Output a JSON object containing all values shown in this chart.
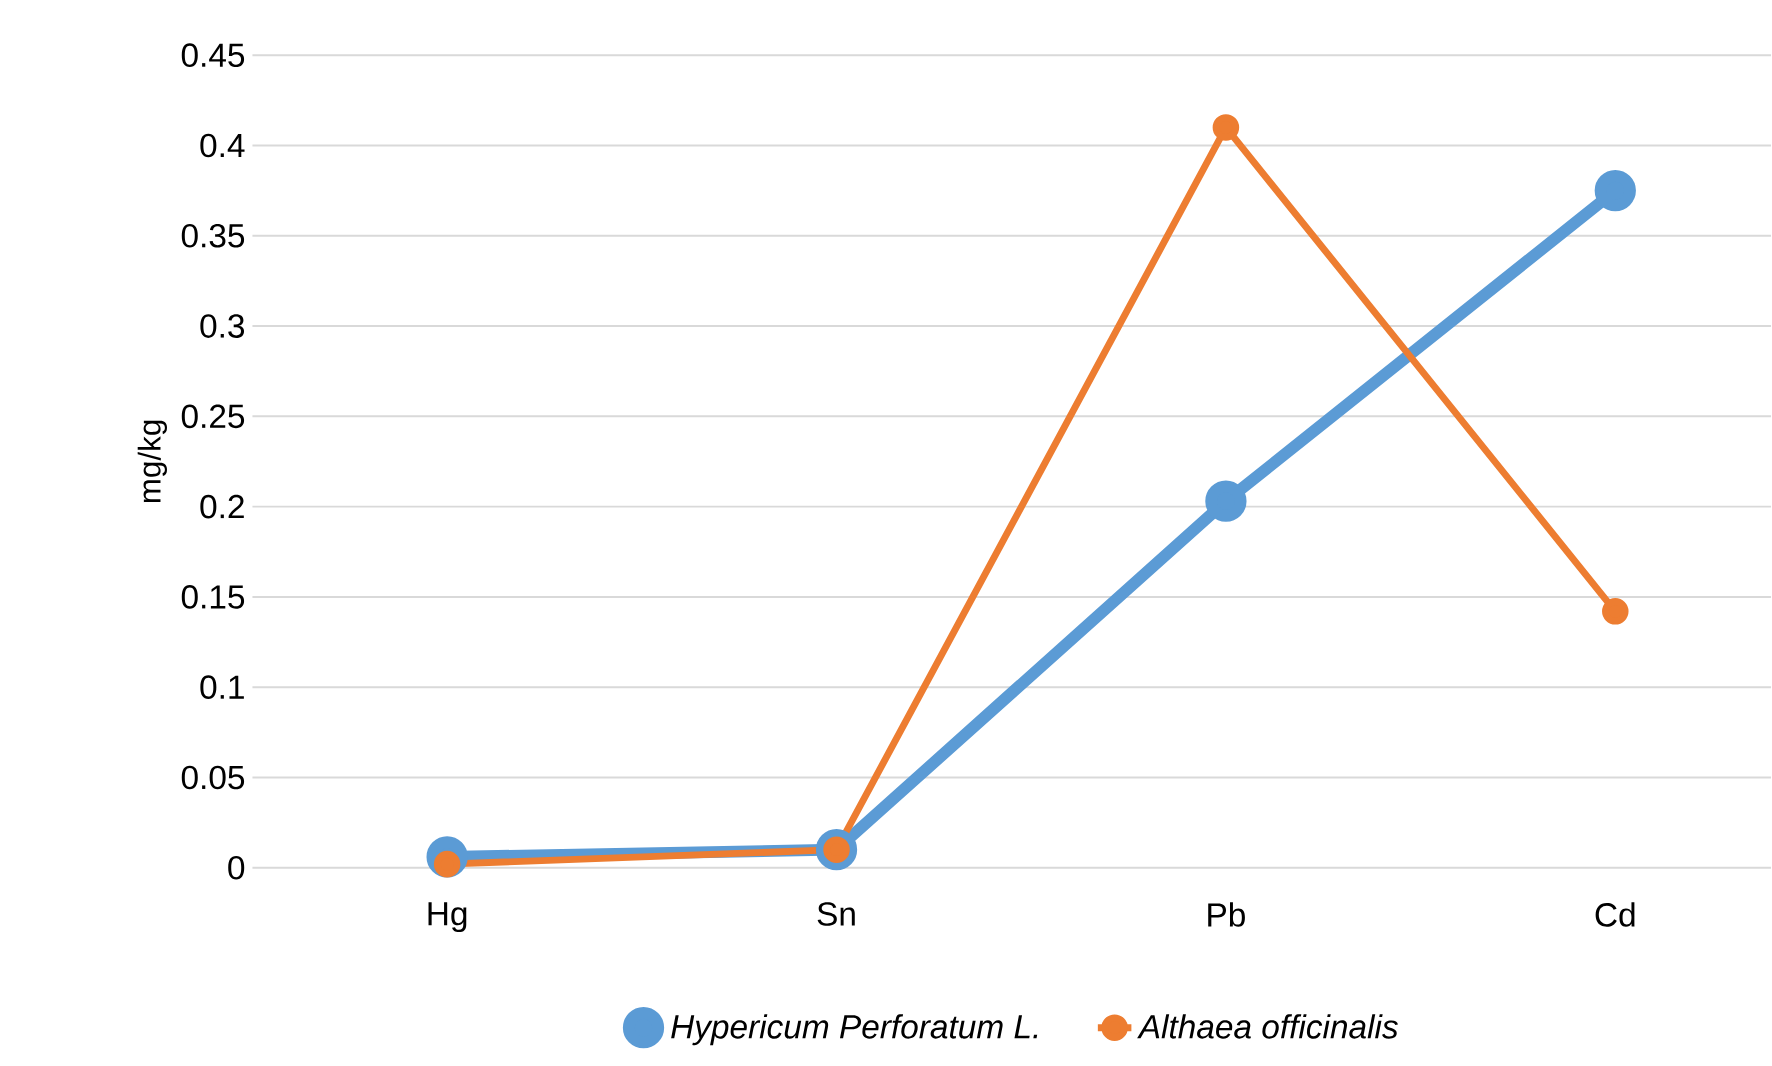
{
  "chart_data": {
    "type": "line",
    "ylabel": "mg/kg",
    "categories": [
      "Hg",
      "Sn",
      "Pb",
      "Cd"
    ],
    "series": [
      {
        "name": "Hypericum Perforatum L.",
        "color": "#5b9bd5",
        "values": [
          0.006,
          0.01,
          0.203,
          0.375
        ]
      },
      {
        "name": "Althaea officinalis",
        "color": "#ed7d31",
        "values": [
          0.002,
          0.01,
          0.41,
          0.142
        ]
      }
    ],
    "ylim": [
      0,
      0.45
    ],
    "yticks": [
      0,
      0.05,
      0.1,
      0.15,
      0.2,
      0.25,
      0.3,
      0.35,
      0.4,
      0.45
    ],
    "grid": "y",
    "legend": "bottom",
    "marker": "circle",
    "line_style": "solid"
  }
}
